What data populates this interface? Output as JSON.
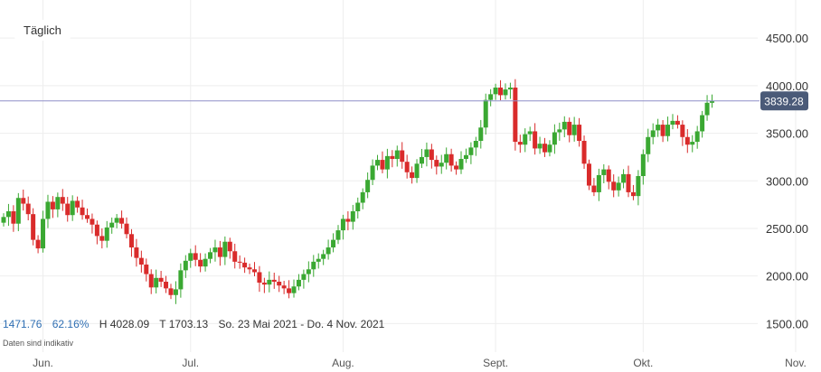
{
  "toolbar": {
    "period_label": "Täglich"
  },
  "stats": {
    "change_abs": "1471.76",
    "change_pct": "62.16%",
    "high": "H 4028.09",
    "low": "T 1703.13",
    "range": "So. 23 Mai 2021 - Do. 4 Nov. 2021"
  },
  "note": "Daten sind indikativ",
  "colors": {
    "up": "#3aa832",
    "down": "#d92b2b",
    "current_line": "#8f8fc8",
    "price_label_bg": "#4a5a78",
    "grid": "#eeeeee"
  },
  "chart_data": {
    "type": "candlestick",
    "current_price": 3839.28,
    "current_price_label": "3839.28",
    "ylim": [
      1200,
      4900
    ],
    "yticks": [
      {
        "value": 1500,
        "label": "1500.00"
      },
      {
        "value": 2000,
        "label": "2000.00"
      },
      {
        "value": 2500,
        "label": "2500.00"
      },
      {
        "value": 3000,
        "label": "3000.00"
      },
      {
        "value": 3500,
        "label": "3500.00"
      },
      {
        "value": 4000,
        "label": "4000.00"
      },
      {
        "value": 4500,
        "label": "4500.00"
      }
    ],
    "xticks": [
      {
        "day": 14,
        "label": "Jun."
      },
      {
        "day": 44,
        "label": "Jul."
      },
      {
        "day": 75,
        "label": "Aug."
      },
      {
        "day": 106,
        "label": "Sept."
      },
      {
        "day": 136,
        "label": "Okt."
      },
      {
        "day": 167,
        "label": "Nov."
      }
    ],
    "xlim": [
      6,
      167
    ],
    "closes": [
      2620,
      2680,
      2550,
      2820,
      2760,
      2650,
      2380,
      2290,
      2600,
      2780,
      2700,
      2830,
      2760,
      2640,
      2790,
      2720,
      2640,
      2600,
      2540,
      2420,
      2370,
      2510,
      2560,
      2610,
      2550,
      2440,
      2300,
      2190,
      2120,
      2020,
      1880,
      1980,
      1940,
      1870,
      1800,
      1860,
      2060,
      2160,
      2240,
      2170,
      2100,
      2180,
      2250,
      2300,
      2200,
      2360,
      2260,
      2150,
      2140,
      2090,
      2070,
      2040,
      1930,
      1910,
      1960,
      1940,
      1900,
      1870,
      1820,
      1890,
      1960,
      2020,
      2070,
      2150,
      2180,
      2230,
      2300,
      2380,
      2480,
      2600,
      2570,
      2680,
      2770,
      2880,
      3010,
      3160,
      3220,
      3120,
      3260,
      3230,
      3320,
      3200,
      3090,
      3030,
      3180,
      3250,
      3330,
      3220,
      3150,
      3190,
      3280,
      3160,
      3120,
      3230,
      3270,
      3350,
      3420,
      3560,
      3850,
      3910,
      3980,
      3900,
      3960,
      3980,
      3410,
      3380,
      3490,
      3520,
      3340,
      3390,
      3300,
      3380,
      3510,
      3540,
      3620,
      3480,
      3590,
      3420,
      3180,
      2950,
      2880,
      3060,
      3120,
      2990,
      2900,
      2980,
      3070,
      2880,
      2840,
      3050,
      3280,
      3460,
      3530,
      3590,
      3470,
      3590,
      3630,
      3590,
      3460,
      3380,
      3410,
      3520,
      3690,
      3820,
      3839
    ]
  }
}
